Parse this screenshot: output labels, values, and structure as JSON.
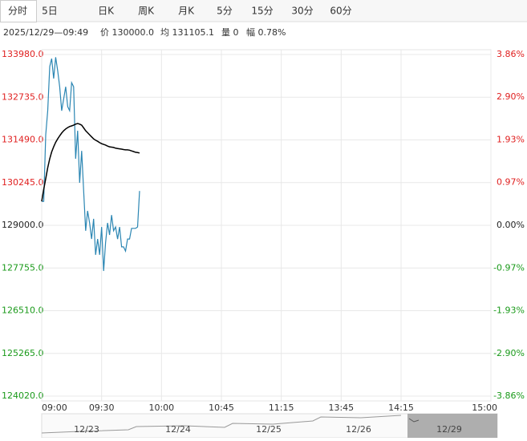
{
  "tabs": [
    "分时",
    "5日",
    "日K",
    "周K",
    "月K",
    "5分",
    "15分",
    "30分",
    "60分"
  ],
  "info": {
    "time": "2025/12/29—09:49",
    "items": [
      "价 130000.0",
      "均 131105.1",
      "量 0",
      "幅 0.78%"
    ]
  },
  "chart_data": {
    "type": "line",
    "x": [
      0,
      1,
      2,
      3,
      4,
      5,
      6,
      7,
      8,
      9,
      10,
      11,
      12,
      13,
      14,
      15,
      16,
      17,
      18,
      19,
      20,
      21,
      22,
      23,
      24,
      25,
      26,
      27,
      28,
      29,
      30,
      31,
      32,
      33,
      34,
      35,
      36,
      37,
      38,
      39,
      40,
      41,
      42,
      43,
      44,
      45,
      46,
      47,
      48,
      49
    ],
    "series": [
      {
        "name": "价",
        "color": "#2b86b3",
        "values": [
          129700,
          129700,
          131640,
          132340,
          133630,
          133860,
          133280,
          133900,
          133510,
          133040,
          132340,
          132690,
          133040,
          132460,
          132340,
          133160,
          133040,
          130940,
          131760,
          130240,
          131170,
          130000,
          128840,
          129420,
          129070,
          128600,
          129190,
          128140,
          128600,
          128140,
          128950,
          127670,
          128490,
          129070,
          128720,
          129300,
          128840,
          128950,
          128600,
          128950,
          128370,
          128370,
          128250,
          128600,
          128600,
          128910,
          128910,
          128910,
          128950,
          130000
        ]
      },
      {
        "name": "均",
        "color": "#000000",
        "values": [
          129700,
          130050,
          130360,
          130680,
          130940,
          131140,
          131290,
          131420,
          131520,
          131610,
          131690,
          131760,
          131810,
          131850,
          131880,
          131900,
          131920,
          131950,
          131970,
          131950,
          131920,
          131840,
          131760,
          131700,
          131640,
          131580,
          131520,
          131480,
          131450,
          131410,
          131380,
          131360,
          131340,
          131310,
          131290,
          131280,
          131270,
          131250,
          131240,
          131230,
          131220,
          131210,
          131200,
          131200,
          131190,
          131170,
          131150,
          131130,
          131120,
          131110
        ]
      }
    ],
    "xlim": [
      0,
      225
    ],
    "xticks": [
      {
        "value": 0,
        "label": "09:00"
      },
      {
        "value": 30,
        "label": "09:30"
      },
      {
        "value": 60,
        "label": "10:00"
      },
      {
        "value": 90,
        "label": "10:45"
      },
      {
        "value": 120,
        "label": "11:15"
      },
      {
        "value": 150,
        "label": "13:45"
      },
      {
        "value": 180,
        "label": "14:15"
      },
      {
        "value": 225,
        "label": "15:00"
      }
    ],
    "ylim": [
      124020,
      133980
    ],
    "yticks": [
      {
        "value": 133980,
        "label": "133980.0"
      },
      {
        "value": 132735,
        "label": "132735.0"
      },
      {
        "value": 131490,
        "label": "131490.0"
      },
      {
        "value": 130245,
        "label": "130245.0"
      },
      {
        "value": 129000,
        "label": "129000.0"
      },
      {
        "value": 127755,
        "label": "127755.0"
      },
      {
        "value": 126510,
        "label": "126510.0"
      },
      {
        "value": 125265,
        "label": "125265.0"
      },
      {
        "value": 124020,
        "label": "124020.0"
      }
    ],
    "y2lim": [
      -3.86,
      3.86
    ],
    "y2ticks": [
      {
        "value": 3.86,
        "label": "3.86%"
      },
      {
        "value": 2.9,
        "label": "2.90%"
      },
      {
        "value": 1.93,
        "label": "1.93%"
      },
      {
        "value": 0.97,
        "label": "0.97%"
      },
      {
        "value": 0,
        "label": "0.00%"
      },
      {
        "value": -0.97,
        "label": "-0.97%"
      },
      {
        "value": -1.93,
        "label": "-1.93%"
      },
      {
        "value": -2.9,
        "label": "-2.90%"
      },
      {
        "value": -3.86,
        "label": "-3.86%"
      }
    ],
    "up_color": "#e02020",
    "down_color": "#1a9a1a",
    "flat_color": "#222222",
    "grid": true
  },
  "navigator": {
    "dates": [
      "12/23",
      "12/24",
      "12/25",
      "12/26",
      "12/29"
    ]
  }
}
